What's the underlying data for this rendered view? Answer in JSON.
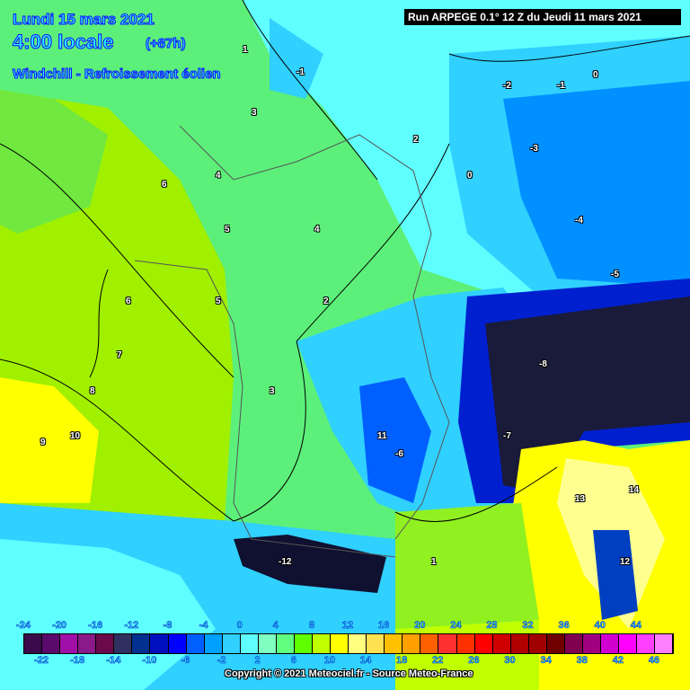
{
  "header": {
    "date": "Lundi 15 mars 2021",
    "time": "4:00 locale",
    "lead": "(+87h)",
    "parameter": "Windchill - Refroissement éolien",
    "run": "Run ARPEGE 0.1° 12 Z du Jeudi 11 mars 2021"
  },
  "legend": {
    "top_labels": [
      "-24",
      "-20",
      "-16",
      "-12",
      "-8",
      "-4",
      "0",
      "4",
      "8",
      "12",
      "16",
      "20",
      "24",
      "28",
      "32",
      "36",
      "40",
      "44"
    ],
    "bottom_labels": [
      "-22",
      "-18",
      "-14",
      "-10",
      "-6",
      "-2",
      "2",
      "6",
      "10",
      "14",
      "18",
      "22",
      "26",
      "30",
      "34",
      "38",
      "42",
      "46"
    ],
    "colors": [
      "#3a0a4a",
      "#5a0a6a",
      "#a010a8",
      "#8a1a8a",
      "#6a0a4a",
      "#303060",
      "#003090",
      "#0010c0",
      "#0000ff",
      "#0060ff",
      "#00a0ff",
      "#30d0ff",
      "#60ffff",
      "#80ffc0",
      "#60ff80",
      "#60ff00",
      "#c0ff00",
      "#ffff00",
      "#ffff80",
      "#ffe050",
      "#ffc000",
      "#ffa000",
      "#ff6000",
      "#ff3030",
      "#ff3000",
      "#ff0000",
      "#d00000",
      "#b00000",
      "#a00000",
      "#700000",
      "#800050",
      "#a00080",
      "#d000d0",
      "#ff00ff",
      "#ff40ff",
      "#ff80ff"
    ]
  },
  "copyright": "Copyright © 2021 Meteociel.fr - Source Meteo-France",
  "map_labels": [
    "1",
    "-1",
    "-2",
    "0",
    "3",
    "4",
    "5",
    "6",
    "7",
    "8",
    "9",
    "10",
    "11",
    "2",
    "-3",
    "-4",
    "-5",
    "-8",
    "-12",
    "13",
    "14",
    "0",
    "-1",
    "3",
    "4",
    "2",
    "6",
    "5",
    "-6",
    "-7",
    "1",
    "12"
  ]
}
